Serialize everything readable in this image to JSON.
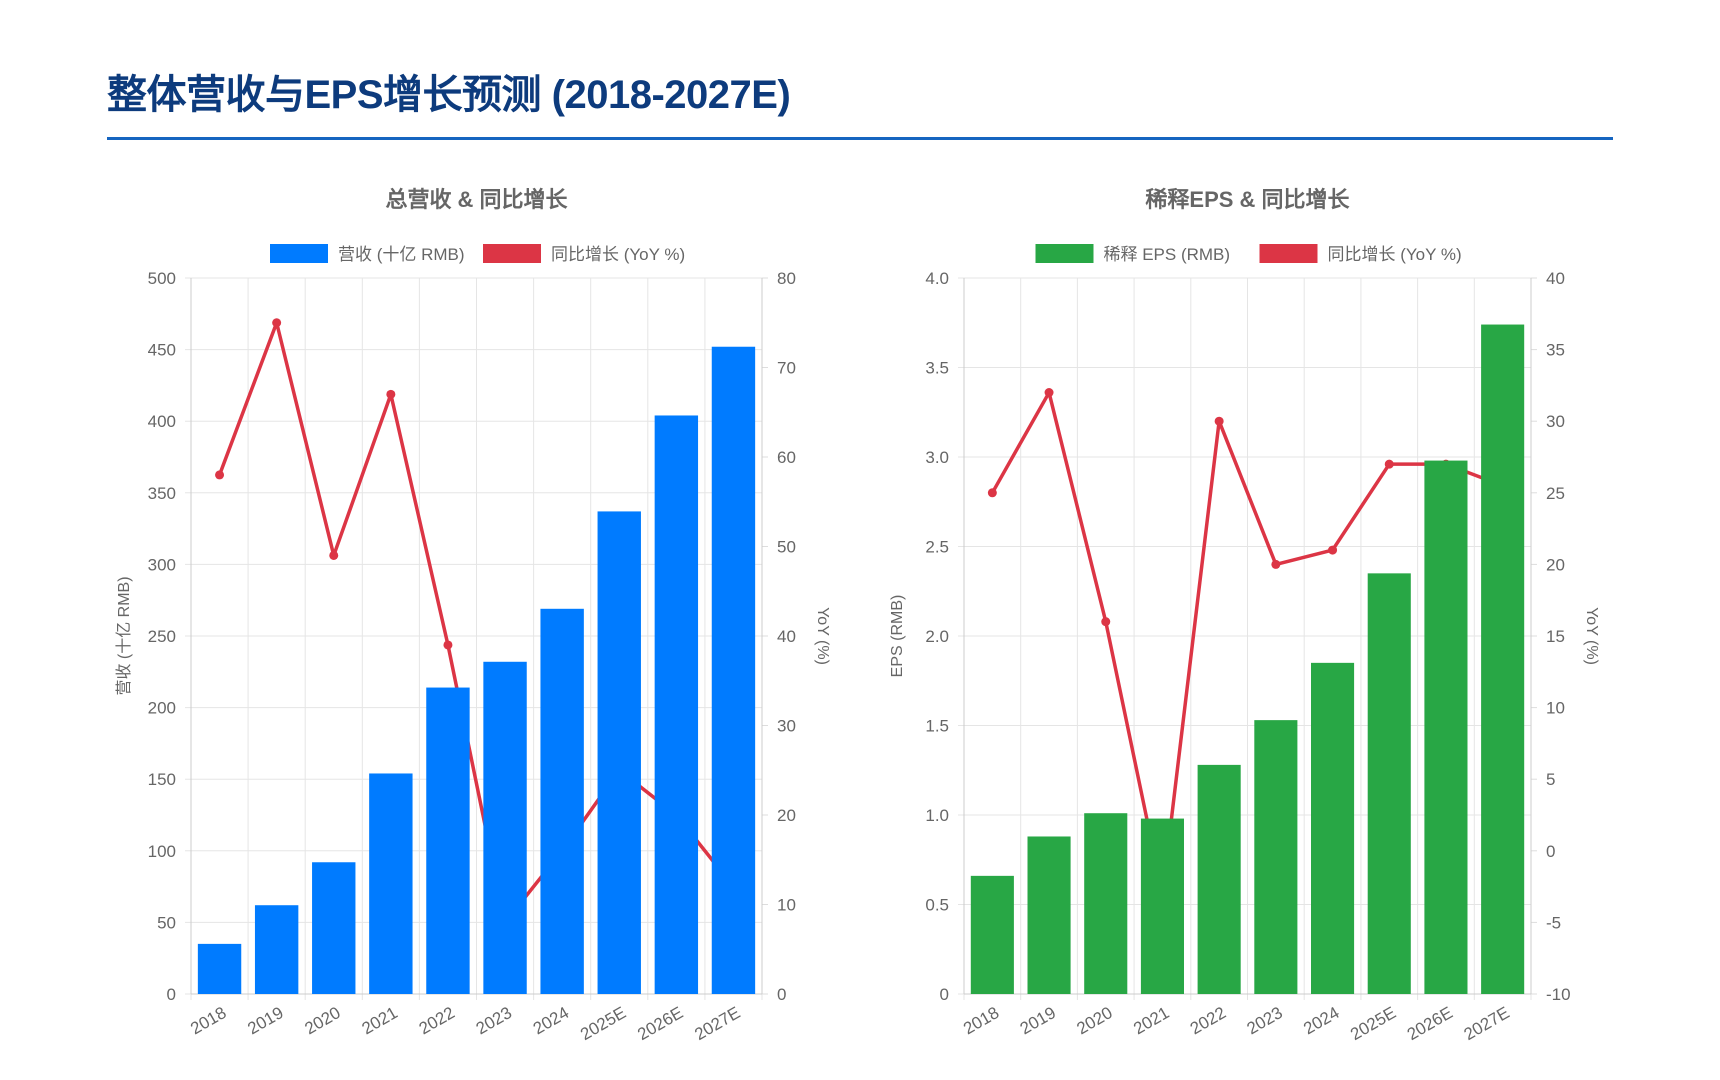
{
  "page": {
    "title": "整体营收与EPS增长预测 (2018-2027E)"
  },
  "colors": {
    "revenue": "#007bff",
    "eps": "#28a745",
    "yoy": "#dc3545",
    "title": "#0d3b7d",
    "rule": "#1565c0"
  },
  "chart_data": [
    {
      "type": "bar",
      "title": "总营收 & 同比增长",
      "categories": [
        "2018",
        "2019",
        "2020",
        "2021",
        "2022",
        "2023",
        "2024",
        "2025E",
        "2026E",
        "2027E"
      ],
      "series": [
        {
          "name": "营收 (十亿 RMB)",
          "type": "bar",
          "axis": "left",
          "color": "#007bff",
          "values": [
            35,
            62,
            92,
            154,
            214,
            232,
            269,
            337,
            404,
            452
          ]
        },
        {
          "name": "同比增长 (YoY %)",
          "type": "line",
          "axis": "right",
          "color": "#dc3545",
          "values": [
            58,
            75,
            49,
            67,
            39,
            8,
            16,
            25,
            20,
            12
          ]
        }
      ],
      "ylabel": "营收 (十亿 RMB)",
      "ylim": [
        0,
        500
      ],
      "yticks": [
        "0",
        "50",
        "100",
        "150",
        "200",
        "250",
        "300",
        "350",
        "400",
        "450",
        "500"
      ],
      "y2label": "YoY (%)",
      "y2lim": [
        0,
        80
      ],
      "y2ticks": [
        "0",
        "10",
        "20",
        "30",
        "40",
        "50",
        "60",
        "70",
        "80"
      ],
      "grid": true,
      "legend": "top"
    },
    {
      "type": "bar",
      "title": "稀释EPS & 同比增长",
      "categories": [
        "2018",
        "2019",
        "2020",
        "2021",
        "2022",
        "2023",
        "2024",
        "2025E",
        "2026E",
        "2027E"
      ],
      "series": [
        {
          "name": "稀释 EPS (RMB)",
          "type": "bar",
          "axis": "left",
          "color": "#28a745",
          "values": [
            0.66,
            0.88,
            1.01,
            0.98,
            1.28,
            1.53,
            1.85,
            2.35,
            2.98,
            3.74
          ]
        },
        {
          "name": "同比增长 (YoY %)",
          "type": "line",
          "axis": "right",
          "color": "#dc3545",
          "values": [
            25,
            32,
            16,
            -3,
            30,
            20,
            21,
            27,
            27,
            25.5
          ]
        }
      ],
      "ylabel": "EPS (RMB)",
      "ylim": [
        0,
        4
      ],
      "yticks": [
        "0",
        "0.5",
        "1.0",
        "1.5",
        "2.0",
        "2.5",
        "3.0",
        "3.5",
        "4.0"
      ],
      "y2label": "YoY (%)",
      "y2lim": [
        -10,
        40
      ],
      "y2ticks": [
        "-10",
        "-5",
        "0",
        "5",
        "10",
        "15",
        "20",
        "25",
        "30",
        "35",
        "40"
      ],
      "grid": true,
      "legend": "top"
    }
  ]
}
